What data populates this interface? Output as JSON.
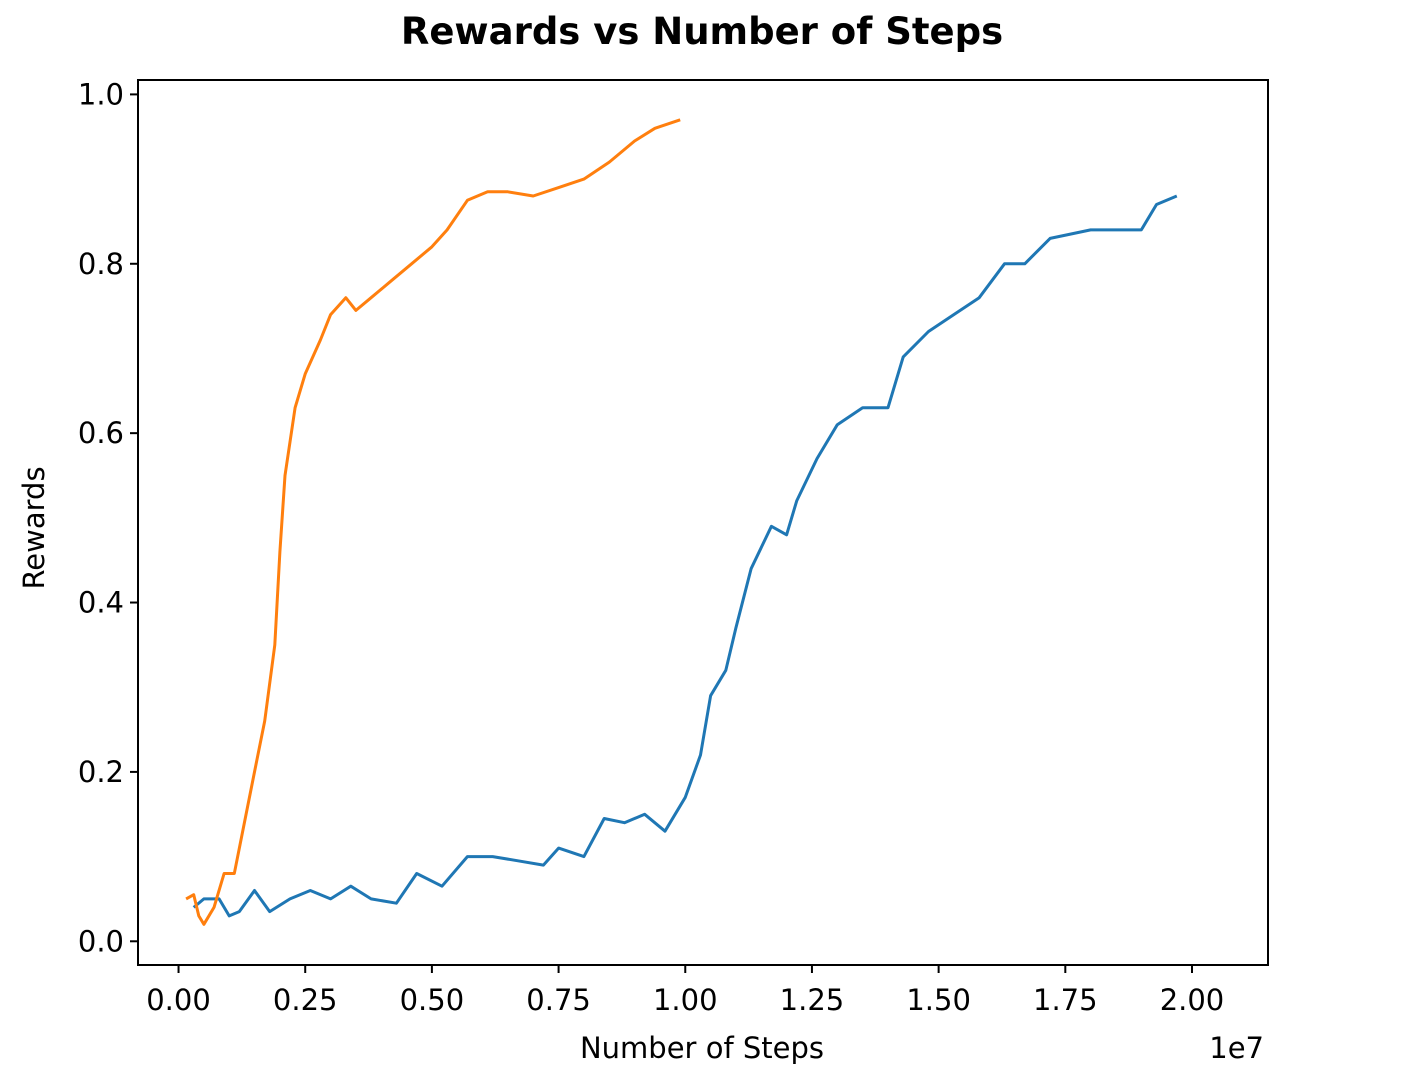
{
  "chart_data": {
    "type": "line",
    "title": "Rewards vs Number of Steps",
    "xlabel": "Number of Steps",
    "ylabel": "Rewards",
    "x_offset_label": "1e7",
    "xlim": [
      -0.08,
      2.15
    ],
    "ylim": [
      -0.028,
      1.017
    ],
    "x_ticks": [
      0.0,
      0.25,
      0.5,
      0.75,
      1.0,
      1.25,
      1.5,
      1.75,
      2.0
    ],
    "x_tick_labels": [
      "0.00",
      "0.25",
      "0.50",
      "0.75",
      "1.00",
      "1.25",
      "1.50",
      "1.75",
      "2.00"
    ],
    "y_ticks": [
      0.0,
      0.2,
      0.4,
      0.6,
      0.8,
      1.0
    ],
    "y_tick_labels": [
      "0.0",
      "0.2",
      "0.4",
      "0.6",
      "0.8",
      "1.0"
    ],
    "grid": false,
    "legend": "none",
    "series": [
      {
        "color": "#1f77b4",
        "points": [
          [
            0.03,
            0.04
          ],
          [
            0.05,
            0.05
          ],
          [
            0.08,
            0.05
          ],
          [
            0.1,
            0.03
          ],
          [
            0.12,
            0.035
          ],
          [
            0.15,
            0.06
          ],
          [
            0.18,
            0.035
          ],
          [
            0.22,
            0.05
          ],
          [
            0.26,
            0.06
          ],
          [
            0.3,
            0.05
          ],
          [
            0.34,
            0.065
          ],
          [
            0.38,
            0.05
          ],
          [
            0.43,
            0.045
          ],
          [
            0.47,
            0.08
          ],
          [
            0.52,
            0.065
          ],
          [
            0.57,
            0.1
          ],
          [
            0.62,
            0.1
          ],
          [
            0.67,
            0.095
          ],
          [
            0.72,
            0.09
          ],
          [
            0.75,
            0.11
          ],
          [
            0.8,
            0.1
          ],
          [
            0.84,
            0.145
          ],
          [
            0.88,
            0.14
          ],
          [
            0.92,
            0.15
          ],
          [
            0.96,
            0.13
          ],
          [
            1.0,
            0.17
          ],
          [
            1.03,
            0.22
          ],
          [
            1.05,
            0.29
          ],
          [
            1.08,
            0.32
          ],
          [
            1.1,
            0.37
          ],
          [
            1.13,
            0.44
          ],
          [
            1.17,
            0.49
          ],
          [
            1.2,
            0.48
          ],
          [
            1.22,
            0.52
          ],
          [
            1.26,
            0.57
          ],
          [
            1.3,
            0.61
          ],
          [
            1.35,
            0.63
          ],
          [
            1.4,
            0.63
          ],
          [
            1.43,
            0.69
          ],
          [
            1.48,
            0.72
          ],
          [
            1.53,
            0.74
          ],
          [
            1.58,
            0.76
          ],
          [
            1.63,
            0.8
          ],
          [
            1.67,
            0.8
          ],
          [
            1.72,
            0.83
          ],
          [
            1.76,
            0.835
          ],
          [
            1.8,
            0.84
          ],
          [
            1.85,
            0.84
          ],
          [
            1.9,
            0.84
          ],
          [
            1.93,
            0.87
          ],
          [
            1.97,
            0.88
          ]
        ]
      },
      {
        "color": "#ff7f0e",
        "points": [
          [
            0.015,
            0.05
          ],
          [
            0.03,
            0.055
          ],
          [
            0.04,
            0.03
          ],
          [
            0.05,
            0.02
          ],
          [
            0.07,
            0.04
          ],
          [
            0.09,
            0.08
          ],
          [
            0.11,
            0.08
          ],
          [
            0.13,
            0.14
          ],
          [
            0.15,
            0.2
          ],
          [
            0.17,
            0.26
          ],
          [
            0.19,
            0.35
          ],
          [
            0.2,
            0.46
          ],
          [
            0.21,
            0.55
          ],
          [
            0.23,
            0.63
          ],
          [
            0.25,
            0.67
          ],
          [
            0.28,
            0.71
          ],
          [
            0.3,
            0.74
          ],
          [
            0.33,
            0.76
          ],
          [
            0.35,
            0.745
          ],
          [
            0.38,
            0.76
          ],
          [
            0.42,
            0.78
          ],
          [
            0.46,
            0.8
          ],
          [
            0.5,
            0.82
          ],
          [
            0.53,
            0.84
          ],
          [
            0.57,
            0.875
          ],
          [
            0.61,
            0.885
          ],
          [
            0.65,
            0.885
          ],
          [
            0.7,
            0.88
          ],
          [
            0.75,
            0.89
          ],
          [
            0.8,
            0.9
          ],
          [
            0.85,
            0.92
          ],
          [
            0.9,
            0.945
          ],
          [
            0.94,
            0.96
          ],
          [
            0.99,
            0.97
          ]
        ]
      }
    ]
  }
}
